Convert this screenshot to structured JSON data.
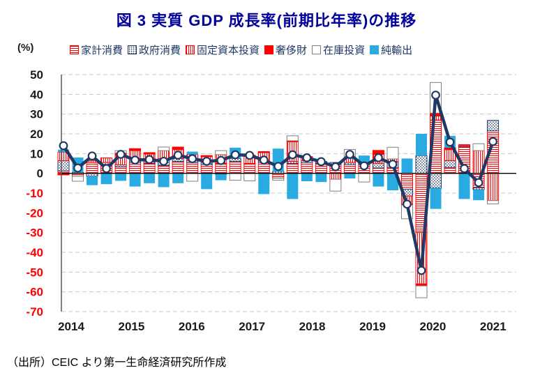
{
  "title": "図 3  実質 GDP 成長率(前期比年率)の推移",
  "unit_label": "(%)",
  "source": "（出所）CEIC より第一生命経済研究所作成",
  "colors": {
    "title_blue": "#00009B",
    "line_navy": "#1F3864",
    "red": "#FF0000",
    "net_export_blue": "#29ABE2",
    "inventory_gray": "#7f7f7f",
    "negative_tick_red": "#FF0000",
    "positive_tick_black": "#1a1a1a",
    "gridline_gray": "#c9c9c9",
    "axis_gray": "#595959"
  },
  "legend": {
    "items": [
      {
        "key": "hh",
        "label": "家計消費"
      },
      {
        "key": "gov",
        "label": "政府消費"
      },
      {
        "key": "fix",
        "label": "固定資本投資"
      },
      {
        "key": "lux",
        "label": "奢侈財"
      },
      {
        "key": "inv",
        "label": "在庫投資"
      },
      {
        "key": "nx",
        "label": "純輸出"
      }
    ]
  },
  "chart_data": {
    "type": "stacked-bar-with-line",
    "title": "図 3  実質 GDP 成長率(前期比年率)の推移",
    "ylabel": "(%)",
    "ylim": [
      -70,
      50
    ],
    "ytick_step": 10,
    "grid": "dashed-horizontal",
    "legend_position": "top",
    "year_labels": [
      "2014",
      "2015",
      "2016",
      "2017",
      "2018",
      "2019",
      "2020",
      "2021"
    ],
    "categories": [
      "2014Q1",
      "2014Q2",
      "2014Q3",
      "2014Q4",
      "2015Q1",
      "2015Q2",
      "2015Q3",
      "2015Q4",
      "2016Q1",
      "2016Q2",
      "2016Q3",
      "2016Q4",
      "2017Q1",
      "2017Q2",
      "2017Q3",
      "2017Q4",
      "2018Q1",
      "2018Q2",
      "2018Q3",
      "2018Q4",
      "2019Q1",
      "2019Q2",
      "2019Q3",
      "2019Q4",
      "2020Q1",
      "2020Q2",
      "2020Q3",
      "2020Q4",
      "2021Q1",
      "2021Q2",
      "2021Q3"
    ],
    "series": [
      {
        "key": "hh",
        "name": "家計消費",
        "style": "horizontal-red-stripes",
        "values": [
          1.2,
          -1.5,
          5.5,
          4.5,
          3.3,
          5.5,
          5.0,
          4.0,
          6.0,
          5.5,
          4.5,
          5.0,
          6.0,
          5.0,
          5.5,
          -2.5,
          5.0,
          5.5,
          5.0,
          4.5,
          4.5,
          4.5,
          2.7,
          3.0,
          -8.0,
          -30.0,
          27.0,
          3.0,
          13.5,
          -7.3,
          21.5
        ]
      },
      {
        "key": "gov",
        "name": "政府消費",
        "style": "navy-dots",
        "values": [
          5.2,
          0.5,
          -1.5,
          1.0,
          1.0,
          1.5,
          0.8,
          3.5,
          1.5,
          1.0,
          1.0,
          -0.5,
          1.5,
          0,
          1.0,
          1.0,
          1.0,
          1.0,
          1.0,
          1.0,
          1.0,
          0.5,
          2.4,
          3.0,
          -3.5,
          9.0,
          -7.5,
          3.5,
          0.5,
          -1.0,
          5.3
        ]
      },
      {
        "key": "fix",
        "name": "固定資本投資",
        "style": "vertical-red-stripes",
        "values": [
          4.3,
          0,
          1.0,
          2.3,
          5.0,
          4.5,
          4.0,
          4.0,
          4.5,
          3.0,
          3.0,
          4.5,
          0,
          3.5,
          4.0,
          0,
          10.0,
          1.5,
          0,
          -3.0,
          1.9,
          0,
          4.5,
          1.3,
          -4.0,
          -26.0,
          2.0,
          5.5,
          0,
          11.5,
          -13.8
        ]
      },
      {
        "key": "lux",
        "name": "奢侈財",
        "style": "solid-red",
        "values": [
          -0.8,
          0,
          0,
          0,
          1.0,
          1.0,
          0.7,
          0,
          1.3,
          0,
          0.5,
          0,
          0,
          0.7,
          0.5,
          0,
          0.5,
          0.5,
          0,
          0,
          0,
          0,
          2.0,
          0,
          -0.5,
          -1.0,
          1.5,
          1.0,
          0.5,
          0,
          0
        ]
      },
      {
        "key": "nx",
        "name": "純輸出",
        "style": "solid-blue",
        "values": [
          1.3,
          7.5,
          -4.5,
          -5.5,
          -3.8,
          -6.7,
          -5.0,
          -7.0,
          -5.0,
          1.5,
          -8.0,
          -3.0,
          5.5,
          0,
          -10.5,
          11.5,
          -13.0,
          -4.0,
          -4.4,
          0,
          -2.6,
          4.0,
          -6.7,
          -8.6,
          7.5,
          11.0,
          -10.5,
          6.0,
          -13.0,
          -5.3,
          0
        ]
      },
      {
        "key": "inv",
        "name": "在庫投資",
        "style": "white-box",
        "values": [
          0,
          -2.5,
          0,
          0,
          1.2,
          0,
          0,
          1.8,
          0,
          -4.0,
          0,
          2.0,
          -3.5,
          -3.8,
          0,
          -1.0,
          2.5,
          0,
          0,
          -6.0,
          4.7,
          -4.4,
          0,
          5.9,
          -7.0,
          -6.0,
          15.5,
          0,
          0,
          3.5,
          -1.7
        ]
      }
    ],
    "line_series": {
      "key": "real_gdp_growth",
      "values": [
        14.0,
        2.7,
        8.8,
        2.4,
        9.6,
        6.7,
        7.0,
        6.1,
        9.2,
        7.4,
        6.1,
        6.5,
        9.4,
        9.1,
        6.7,
        3.5,
        9.4,
        7.9,
        5.9,
        3.3,
        9.6,
        3.8,
        7.9,
        4.6,
        -15.6,
        -49.2,
        39.6,
        15.8,
        2.4,
        -4.7,
        16.1
      ]
    }
  }
}
